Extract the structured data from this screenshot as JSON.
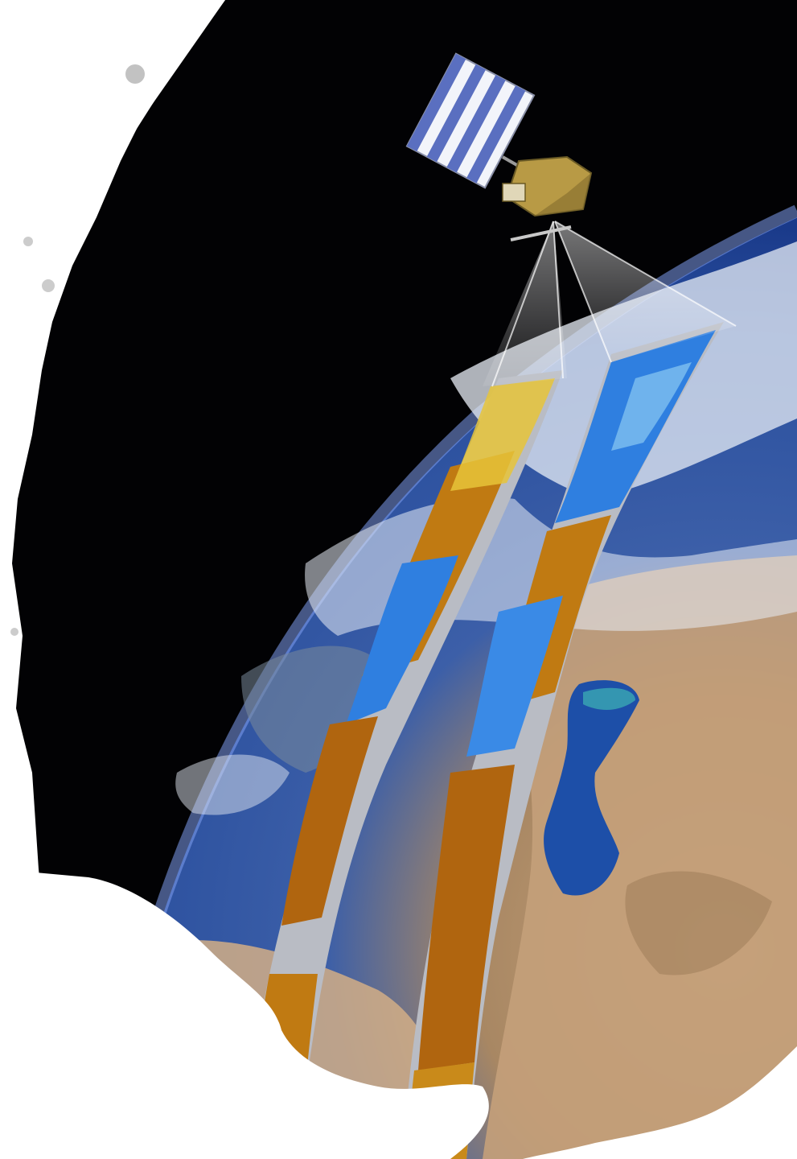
{
  "image": {
    "subject": "satellite-over-earth-swaths",
    "colors": {
      "space": "#020204",
      "ocean": "#2a4f9e",
      "ocean_deep": "#163a85",
      "atmosphere_glow": "#6f8fe0",
      "land_desert": "#c9a37a",
      "land_dark": "#8a6a48",
      "cloud": "#e8edf5",
      "swath_gray": "#b9bcc4",
      "swath_orange": "#c07a12",
      "swath_yellow": "#e6c43a",
      "swath_blue": "#2f7fe0",
      "swath_lightblue": "#7fc0f0",
      "caspian": "#1d4fa8",
      "caspian_teal": "#3fb5b5",
      "panel_blue": "#5a6fc0",
      "panel_white": "#f2f4fa",
      "satellite_gold": "#b89a45",
      "paper": "#ffffff"
    }
  }
}
